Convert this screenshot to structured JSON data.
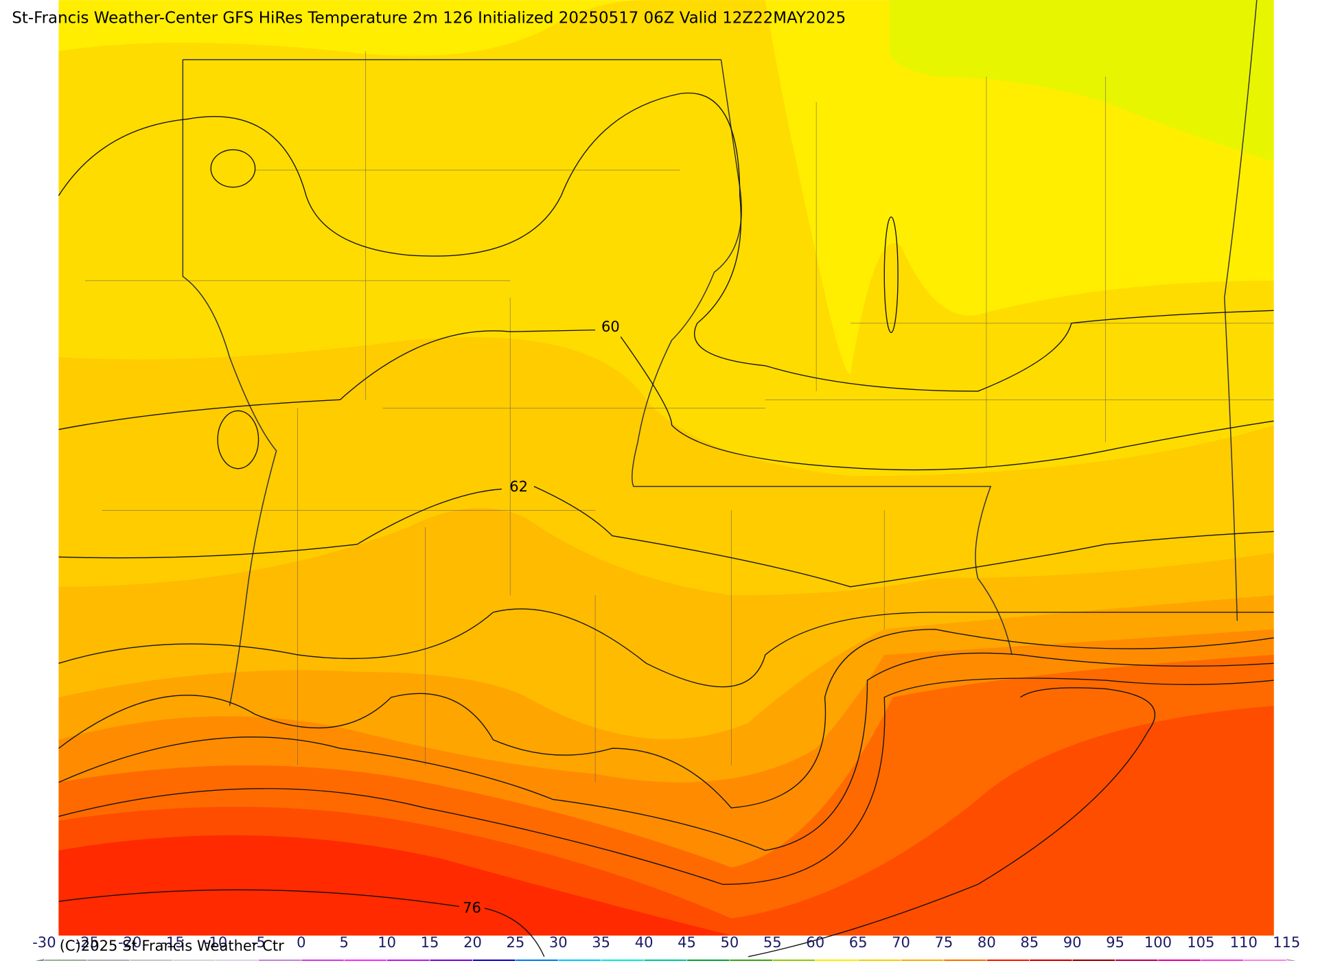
{
  "title": "St-Francis Weather-Center GFS HiRes Temperature 2m  126 Initialized 20250517 06Z Valid 12Z22MAY2025",
  "copyright": "(C)2025 St Francis Weather Ctr",
  "contour_labels": [
    60,
    62,
    76
  ],
  "colorbar": {
    "labels": [
      -30,
      -25,
      -20,
      -15,
      -10,
      -5,
      0,
      5,
      10,
      15,
      20,
      25,
      30,
      35,
      40,
      45,
      50,
      55,
      60,
      65,
      70,
      75,
      80,
      85,
      90,
      95,
      100,
      105,
      110,
      115
    ],
    "under_color": "#7fa37f",
    "over_color": "#f4c4f4",
    "colors": [
      "#a0b4a0",
      "#b4b4b4",
      "#c8c8c8",
      "#d8d8d8",
      "#e0d4e8",
      "#cc88dd",
      "#e040e8",
      "#ff33ff",
      "#cc22ee",
      "#8811dd",
      "#2211cc",
      "#0088ee",
      "#00ccff",
      "#00eedd",
      "#00cc99",
      "#11aa44",
      "#44aa22",
      "#99cc11",
      "#ffee00",
      "#ffd000",
      "#ffb000",
      "#ff7a00",
      "#ff2200",
      "#dd0000",
      "#aa0000",
      "#cc0066",
      "#ee00aa",
      "#ff44dd",
      "#ff88ee"
    ]
  }
}
